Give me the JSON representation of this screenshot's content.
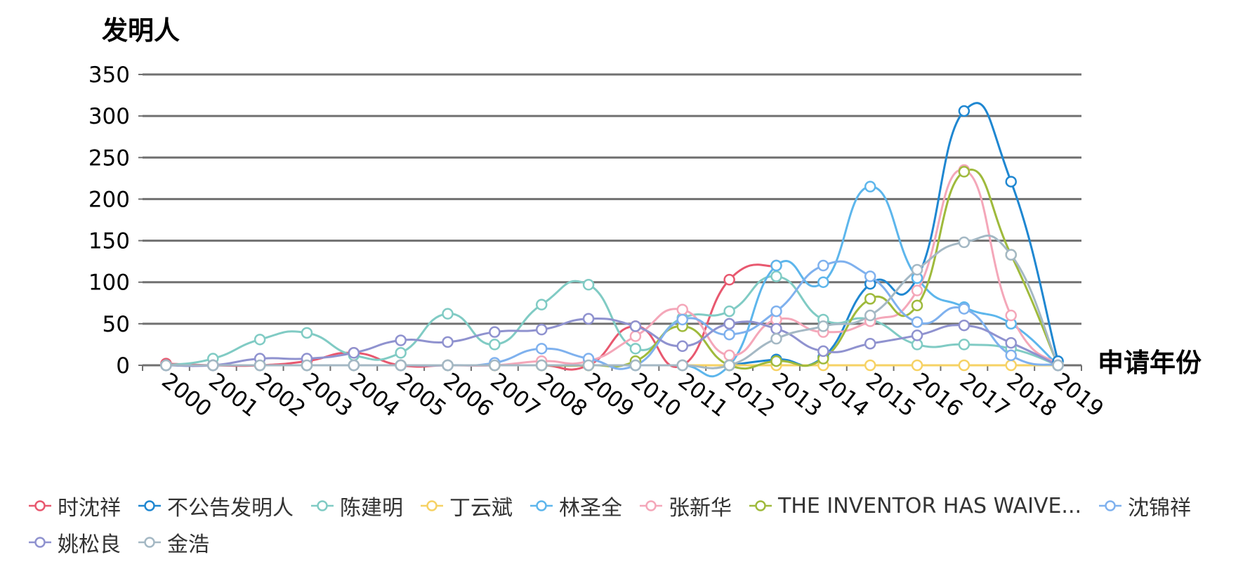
{
  "chart_data": {
    "type": "line",
    "ylabel": "发明人",
    "xlabel": "申请年份",
    "ylim": [
      0,
      350
    ],
    "y_ticks": [
      0,
      50,
      100,
      150,
      200,
      250,
      300,
      350
    ],
    "grid": true,
    "legend_position": "bottom",
    "categories": [
      "2000",
      "2001",
      "2002",
      "2003",
      "2004",
      "2005",
      "2006",
      "2007",
      "2008",
      "2009",
      "2010",
      "2011",
      "2012",
      "2013",
      "2014",
      "2015",
      "2016",
      "2017",
      "2018",
      "2019"
    ],
    "series": [
      {
        "name": "时沈祥",
        "color": "#e8586f",
        "values": [
          2,
          0,
          0,
          5,
          15,
          0,
          0,
          0,
          0,
          0,
          47,
          0,
          103,
          120,
          null,
          null,
          null,
          null,
          null,
          null
        ]
      },
      {
        "name": "不公告发明人",
        "color": "#1f87d1",
        "values": [
          null,
          null,
          null,
          null,
          null,
          null,
          null,
          null,
          null,
          null,
          null,
          null,
          0,
          7,
          10,
          98,
          105,
          306,
          221,
          5
        ]
      },
      {
        "name": "陈建明",
        "color": "#80cbc4",
        "values": [
          0,
          8,
          31,
          39,
          12,
          15,
          62,
          25,
          73,
          97,
          20,
          57,
          65,
          107,
          55,
          55,
          25,
          25,
          20,
          0
        ]
      },
      {
        "name": "丁云斌",
        "color": "#f6d264",
        "values": [
          0,
          0,
          0,
          0,
          0,
          0,
          0,
          0,
          0,
          0,
          0,
          0,
          0,
          0,
          0,
          0,
          0,
          0,
          0,
          0
        ]
      },
      {
        "name": "林圣全",
        "color": "#5db6ec",
        "values": [
          0,
          0,
          0,
          0,
          0,
          0,
          0,
          0,
          0,
          0,
          0,
          0,
          0,
          120,
          100,
          215,
          105,
          70,
          50,
          0
        ]
      },
      {
        "name": "张新华",
        "color": "#f4a7b9",
        "values": [
          0,
          0,
          0,
          0,
          0,
          0,
          0,
          0,
          5,
          5,
          35,
          67,
          12,
          55,
          40,
          53,
          90,
          235,
          60,
          0
        ]
      },
      {
        "name": "THE INVENTOR HAS WAIVE...",
        "color": "#9fba3c",
        "values": [
          0,
          0,
          0,
          0,
          0,
          0,
          0,
          0,
          0,
          0,
          5,
          47,
          0,
          5,
          8,
          80,
          72,
          233,
          133,
          0
        ]
      },
      {
        "name": "沈锦祥",
        "color": "#7fb1ee",
        "values": [
          0,
          0,
          0,
          0,
          0,
          0,
          0,
          3,
          20,
          8,
          0,
          55,
          37,
          65,
          120,
          107,
          52,
          68,
          12,
          0
        ]
      },
      {
        "name": "姚松良",
        "color": "#8f92cf",
        "values": [
          0,
          0,
          8,
          8,
          15,
          30,
          28,
          40,
          43,
          56,
          47,
          23,
          50,
          44,
          17,
          26,
          36,
          48,
          27,
          0
        ]
      },
      {
        "name": "金浩",
        "color": "#a4b8c4",
        "values": [
          0,
          0,
          0,
          0,
          0,
          0,
          0,
          0,
          0,
          0,
          0,
          0,
          0,
          32,
          47,
          60,
          115,
          148,
          133,
          0
        ]
      }
    ]
  }
}
